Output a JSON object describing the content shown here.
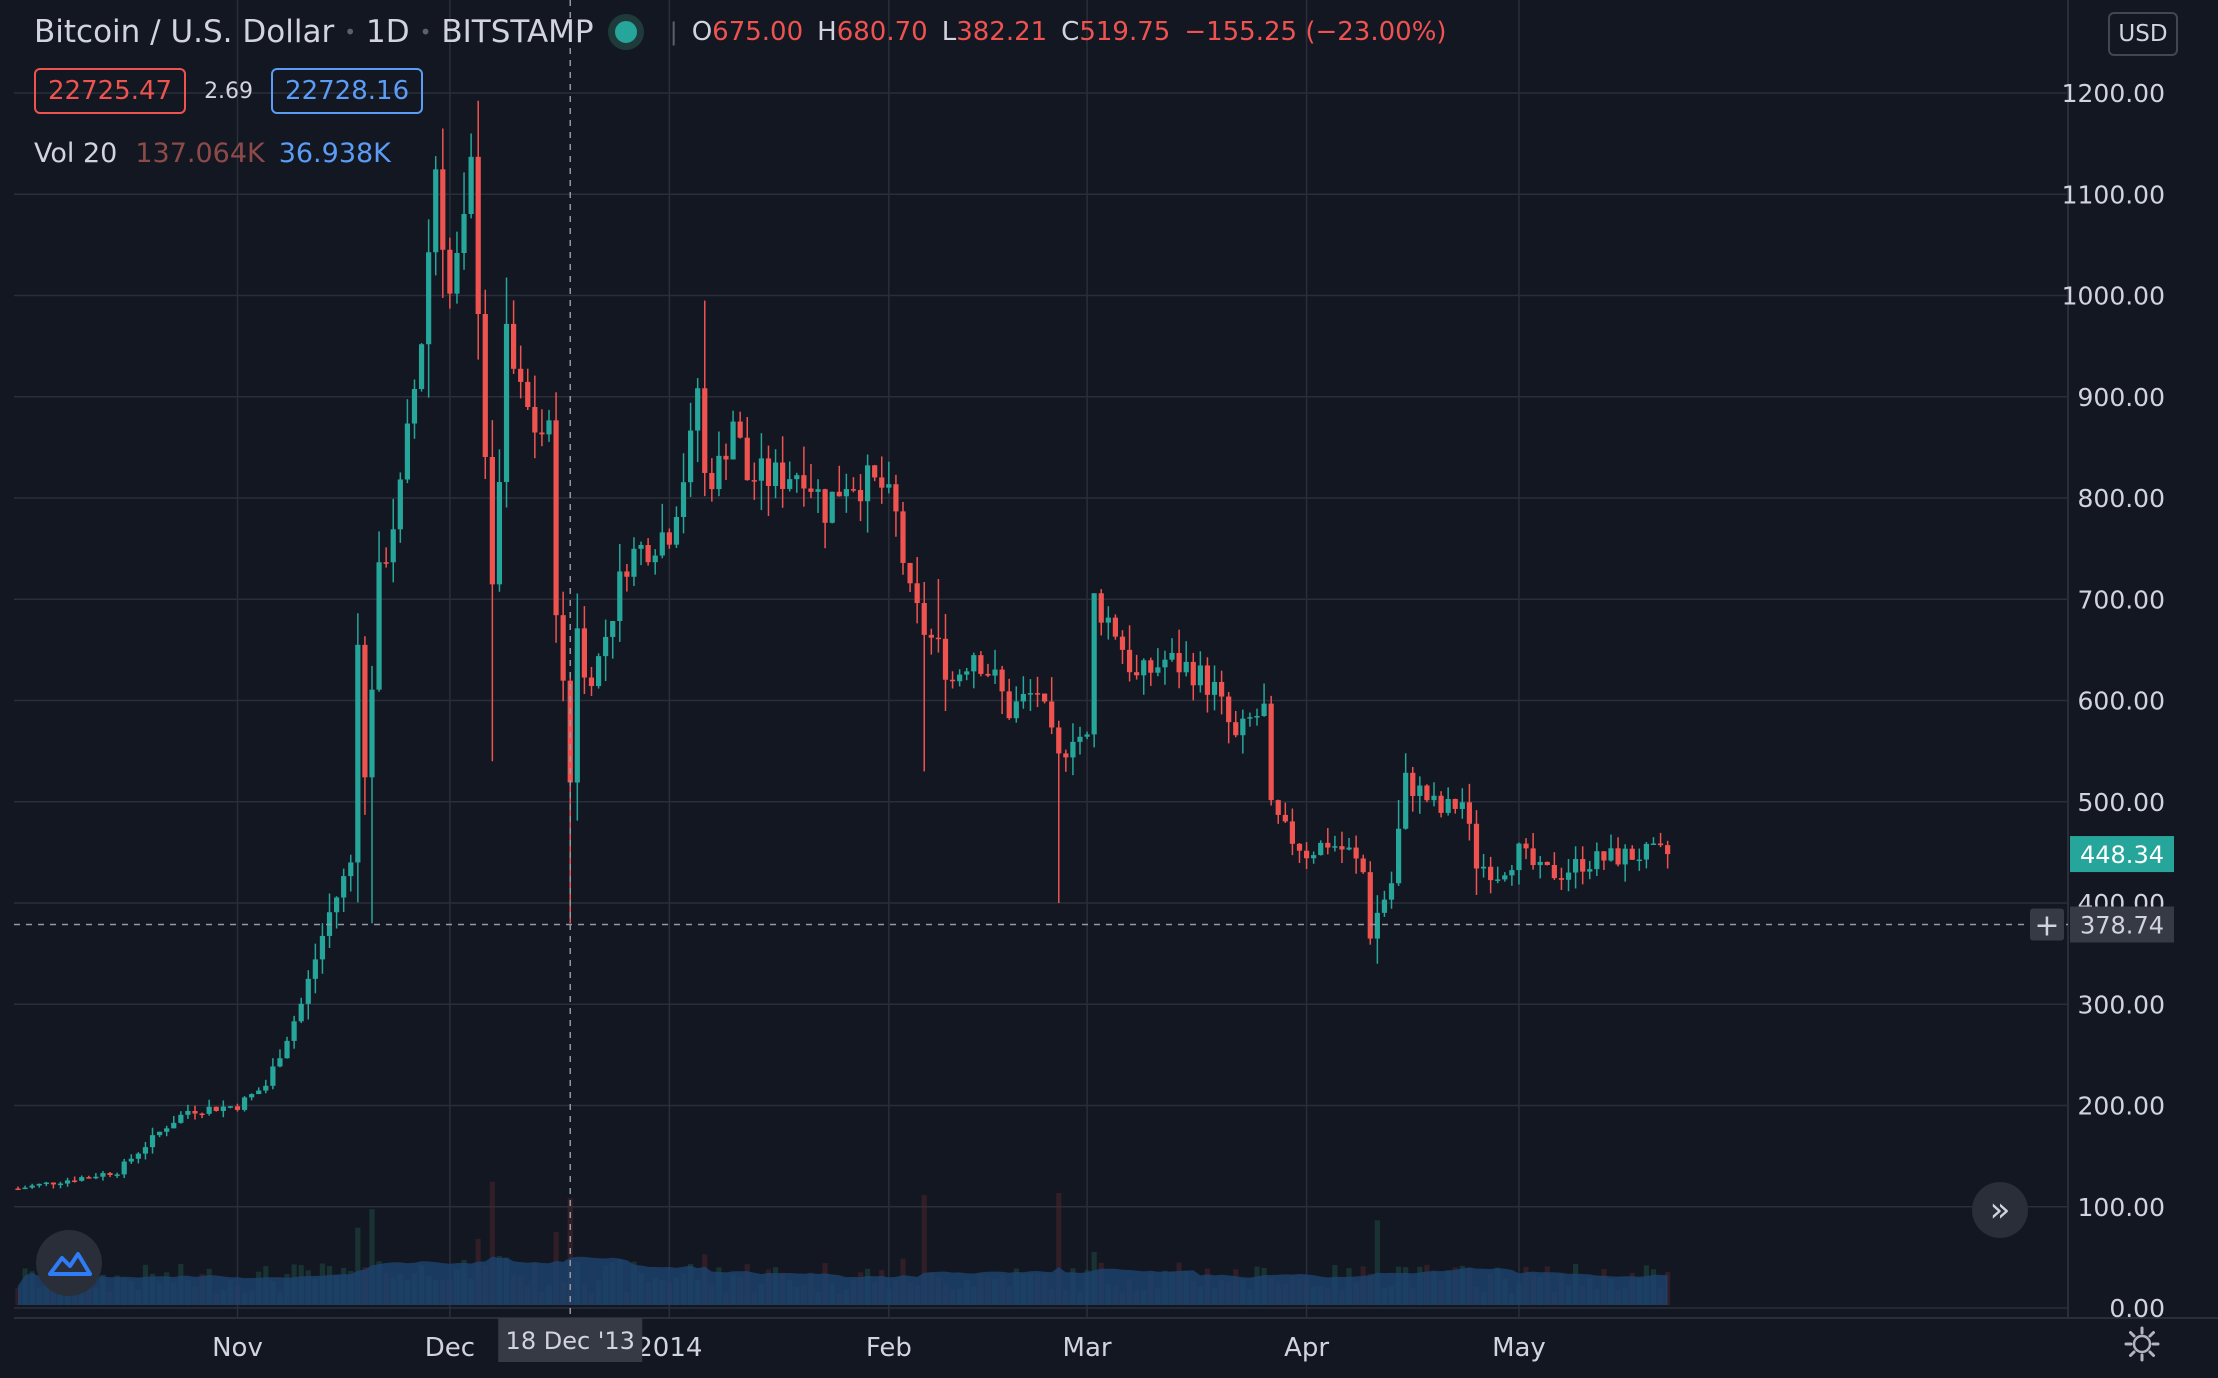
{
  "legend": {
    "symbol": "Bitcoin / U.S. Dollar",
    "interval": "1D",
    "exchange": "BITSTAMP",
    "ohlc": {
      "o_label": "O",
      "o": "675.00",
      "h_label": "H",
      "h": "680.70",
      "l_label": "L",
      "l": "382.21",
      "c_label": "C",
      "c": "519.75",
      "change": "−155.25 (−23.00%)"
    },
    "bid": "22725.47",
    "spread": "2.69",
    "ask": "22728.16",
    "volume_label": "Vol 20",
    "volume_value": "137.064K",
    "volume_ma": "36.938K"
  },
  "currency_button": "USD",
  "price_axis": {
    "ticks": [
      "1200.00",
      "1100.00",
      "1000.00",
      "900.00",
      "800.00",
      "700.00",
      "600.00",
      "500.00",
      "400.00",
      "300.00",
      "200.00",
      "100.00",
      "0.00"
    ]
  },
  "time_axis": {
    "ticks": [
      "Nov",
      "Dec",
      "2014",
      "Feb",
      "Mar",
      "Apr",
      "May"
    ]
  },
  "crosshair": {
    "date_label": "18 Dec '13",
    "price_label": "378.74",
    "plus_icon": "crosshair-plus-icon"
  },
  "last_price_label": "448.34",
  "colors": {
    "background": "#131722",
    "up": "#26a69a",
    "down": "#ef5350",
    "grid": "#2a2e39",
    "volume_area": "#1e4470",
    "axis_text": "#d1d4dc"
  },
  "chart_data": {
    "type": "candlestick",
    "title": "Bitcoin / U.S. Dollar",
    "interval": "1D",
    "exchange": "BITSTAMP",
    "ylim": [
      0,
      1240
    ],
    "y_scale": "linear",
    "grid": true,
    "x_range": [
      "2013-10-01",
      "2014-05-22"
    ],
    "crosshair_date": "2013-12-18",
    "crosshair_price": 378.74,
    "last_price": 448.34,
    "volume_ma_length": 20,
    "keypoints_close": [
      [
        "2013-10-01",
        118
      ],
      [
        "2013-10-15",
        135
      ],
      [
        "2013-10-22",
        180
      ],
      [
        "2013-10-25",
        195
      ],
      [
        "2013-11-01",
        200
      ],
      [
        "2013-11-05",
        220
      ],
      [
        "2013-11-10",
        300
      ],
      [
        "2013-11-14",
        390
      ],
      [
        "2013-11-17",
        440
      ],
      [
        "2013-11-18",
        670
      ],
      [
        "2013-11-19",
        520
      ],
      [
        "2013-11-21",
        720
      ],
      [
        "2013-11-24",
        805
      ],
      [
        "2013-11-27",
        960
      ],
      [
        "2013-11-29",
        1130
      ],
      [
        "2013-12-01",
        1000
      ],
      [
        "2013-12-03",
        1060
      ],
      [
        "2013-12-04",
        1120
      ],
      [
        "2013-12-05",
        1000
      ],
      [
        "2013-12-07",
        700
      ],
      [
        "2013-12-09",
        950
      ],
      [
        "2013-12-11",
        900
      ],
      [
        "2013-12-13",
        870
      ],
      [
        "2013-12-15",
        860
      ],
      [
        "2013-12-16",
        700
      ],
      [
        "2013-12-18",
        520
      ],
      [
        "2013-12-19",
        680
      ],
      [
        "2013-12-20",
        620
      ],
      [
        "2013-12-22",
        640
      ],
      [
        "2013-12-26",
        740
      ],
      [
        "2013-12-30",
        760
      ],
      [
        "2014-01-01",
        770
      ],
      [
        "2014-01-04",
        850
      ],
      [
        "2014-01-05",
        910
      ],
      [
        "2014-01-06",
        820
      ],
      [
        "2014-01-08",
        830
      ],
      [
        "2014-01-10",
        880
      ],
      [
        "2014-01-12",
        820
      ],
      [
        "2014-01-16",
        820
      ],
      [
        "2014-01-20",
        830
      ],
      [
        "2014-01-23",
        790
      ],
      [
        "2014-01-26",
        820
      ],
      [
        "2014-01-31",
        810
      ],
      [
        "2014-02-02",
        780
      ],
      [
        "2014-02-04",
        700
      ],
      [
        "2014-02-06",
        670
      ],
      [
        "2014-02-08",
        650
      ],
      [
        "2014-02-10",
        620
      ],
      [
        "2014-02-13",
        650
      ],
      [
        "2014-02-16",
        620
      ],
      [
        "2014-02-18",
        590
      ],
      [
        "2014-02-20",
        600
      ],
      [
        "2014-02-22",
        610
      ],
      [
        "2014-02-24",
        560
      ],
      [
        "2014-02-25",
        540
      ],
      [
        "2014-02-27",
        570
      ],
      [
        "2014-03-01",
        560
      ],
      [
        "2014-03-02",
        700
      ],
      [
        "2014-03-05",
        670
      ],
      [
        "2014-03-08",
        620
      ],
      [
        "2014-03-12",
        640
      ],
      [
        "2014-03-16",
        630
      ],
      [
        "2014-03-19",
        610
      ],
      [
        "2014-03-22",
        560
      ],
      [
        "2014-03-24",
        580
      ],
      [
        "2014-03-26",
        590
      ],
      [
        "2014-03-27",
        490
      ],
      [
        "2014-03-29",
        470
      ],
      [
        "2014-04-01",
        450
      ],
      [
        "2014-04-04",
        460
      ],
      [
        "2014-04-07",
        450
      ],
      [
        "2014-04-09",
        430
      ],
      [
        "2014-04-10",
        370
      ],
      [
        "2014-04-11",
        390
      ],
      [
        "2014-04-13",
        420
      ],
      [
        "2014-04-15",
        520
      ],
      [
        "2014-04-17",
        510
      ],
      [
        "2014-04-20",
        490
      ],
      [
        "2014-04-23",
        500
      ],
      [
        "2014-04-25",
        440
      ],
      [
        "2014-04-28",
        430
      ],
      [
        "2014-05-01",
        450
      ],
      [
        "2014-05-04",
        430
      ],
      [
        "2014-05-07",
        430
      ],
      [
        "2014-05-10",
        440
      ],
      [
        "2014-05-14",
        445
      ],
      [
        "2014-05-18",
        448
      ],
      [
        "2014-05-22",
        448
      ]
    ],
    "spike_lows": [
      [
        "2013-11-20",
        380
      ],
      [
        "2013-12-07",
        540
      ],
      [
        "2013-12-18",
        380
      ],
      [
        "2014-02-06",
        530
      ],
      [
        "2014-02-25",
        400
      ],
      [
        "2014-04-11",
        340
      ]
    ],
    "spike_highs": [
      [
        "2013-11-30",
        1165
      ],
      [
        "2013-12-04",
        1160
      ],
      [
        "2014-01-06",
        995
      ],
      [
        "2014-02-08",
        720
      ],
      [
        "2014-03-03",
        710
      ]
    ]
  }
}
